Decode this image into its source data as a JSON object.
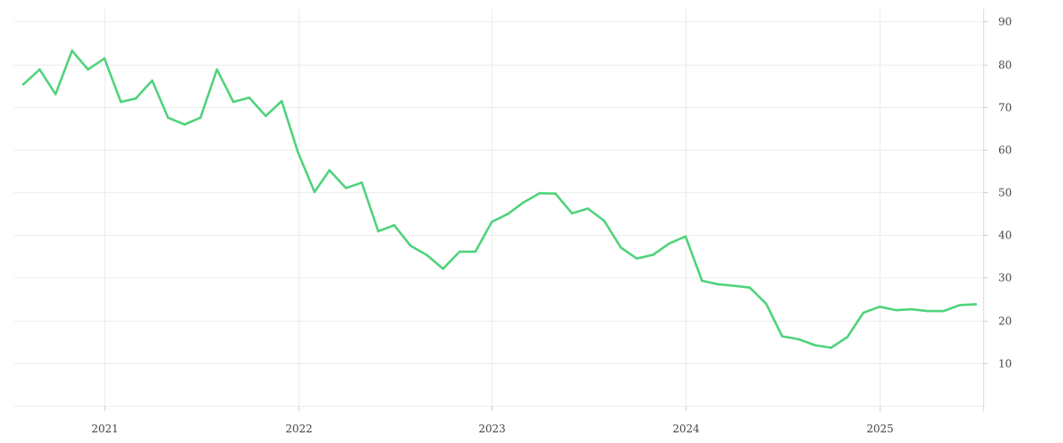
{
  "chart_data": {
    "type": "line",
    "title": "",
    "xlabel": "",
    "ylabel": "",
    "x_axis": {
      "type": "date",
      "range": [
        "2020-07-15",
        "2025-07-15"
      ],
      "ticks": [
        "2021",
        "2022",
        "2023",
        "2024",
        "2025"
      ]
    },
    "y_axis": {
      "side": "right",
      "range": [
        0,
        93
      ],
      "ticks": [
        10,
        20,
        30,
        40,
        50,
        60,
        70,
        80,
        90
      ]
    },
    "grid": true,
    "legend": "none",
    "series": [
      {
        "color": "#4fd37b",
        "points": [
          [
            "2020-08-01",
            75.3
          ],
          [
            "2020-09-01",
            78.8
          ],
          [
            "2020-10-01",
            73.0
          ],
          [
            "2020-11-01",
            83.2
          ],
          [
            "2020-12-01",
            78.8
          ],
          [
            "2021-01-01",
            81.4
          ],
          [
            "2021-02-01",
            71.2
          ],
          [
            "2021-03-01",
            72.0
          ],
          [
            "2021-04-01",
            76.2
          ],
          [
            "2021-05-01",
            67.5
          ],
          [
            "2021-06-01",
            65.9
          ],
          [
            "2021-07-01",
            67.5
          ],
          [
            "2021-08-01",
            78.8
          ],
          [
            "2021-09-01",
            71.2
          ],
          [
            "2021-10-01",
            72.2
          ],
          [
            "2021-11-01",
            67.9
          ],
          [
            "2021-12-01",
            71.4
          ],
          [
            "2022-01-01",
            59.3
          ],
          [
            "2022-02-01",
            50.1
          ],
          [
            "2022-03-01",
            55.2
          ],
          [
            "2022-04-01",
            51.0
          ],
          [
            "2022-05-01",
            52.3
          ],
          [
            "2022-06-01",
            40.9
          ],
          [
            "2022-07-01",
            42.3
          ],
          [
            "2022-08-01",
            37.5
          ],
          [
            "2022-09-01",
            35.3
          ],
          [
            "2022-10-01",
            32.1
          ],
          [
            "2022-11-01",
            36.1
          ],
          [
            "2022-12-01",
            36.1
          ],
          [
            "2023-01-01",
            43.1
          ],
          [
            "2023-02-01",
            45.0
          ],
          [
            "2023-03-01",
            47.6
          ],
          [
            "2023-04-01",
            49.8
          ],
          [
            "2023-05-01",
            49.7
          ],
          [
            "2023-06-01",
            45.1
          ],
          [
            "2023-07-01",
            46.2
          ],
          [
            "2023-08-01",
            43.3
          ],
          [
            "2023-09-01",
            37.1
          ],
          [
            "2023-10-01",
            34.5
          ],
          [
            "2023-11-01",
            35.4
          ],
          [
            "2023-12-01",
            38.0
          ],
          [
            "2024-01-01",
            39.7
          ],
          [
            "2024-02-01",
            29.3
          ],
          [
            "2024-03-01",
            28.5
          ],
          [
            "2024-04-01",
            28.1
          ],
          [
            "2024-05-01",
            27.7
          ],
          [
            "2024-06-01",
            23.9
          ],
          [
            "2024-07-01",
            16.3
          ],
          [
            "2024-08-01",
            15.6
          ],
          [
            "2024-09-01",
            14.2
          ],
          [
            "2024-10-01",
            13.6
          ],
          [
            "2024-11-01",
            16.1
          ],
          [
            "2024-12-01",
            21.8
          ],
          [
            "2025-01-01",
            23.2
          ],
          [
            "2025-02-01",
            22.4
          ],
          [
            "2025-03-01",
            22.6
          ],
          [
            "2025-04-01",
            22.2
          ],
          [
            "2025-05-01",
            22.2
          ],
          [
            "2025-06-01",
            23.6
          ],
          [
            "2025-07-01",
            23.8
          ]
        ]
      }
    ]
  }
}
